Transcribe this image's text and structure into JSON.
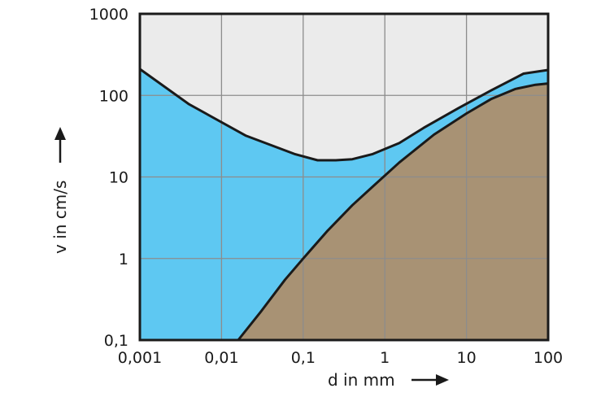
{
  "chart_data": {
    "type": "area",
    "title": "",
    "xlabel": "d in mm",
    "ylabel": "v in cm/s",
    "xscale": "log",
    "yscale": "log",
    "xlim": [
      0.001,
      100
    ],
    "ylim": [
      0.1,
      1000
    ],
    "grid": true,
    "x_ticks": [
      "0,001",
      "0,01",
      "0,1",
      "1",
      "10",
      "100"
    ],
    "y_ticks": [
      "0,1",
      "1",
      "10",
      "100",
      "1000"
    ],
    "colors": {
      "upper_region": "#ebebeb",
      "middle_region": "#5ec8f2",
      "lower_region": "#a89274",
      "curve": "#1a1a1a",
      "grid": "#8c8c8c"
    },
    "series": [
      {
        "x": [
          0.001,
          0.004,
          0.02,
          0.08,
          0.15,
          0.25,
          0.4,
          0.7,
          1.5,
          3,
          8,
          20,
          50,
          100
        ],
        "y": [
          210,
          78,
          32,
          19,
          16,
          16,
          16.5,
          19,
          26,
          40,
          70,
          115,
          185,
          205
        ]
      },
      {
        "x": [
          0.016,
          0.03,
          0.06,
          0.1,
          0.2,
          0.4,
          0.7,
          1.5,
          4,
          10,
          20,
          40,
          70,
          100
        ],
        "y": [
          0.1,
          0.22,
          0.55,
          1.0,
          2.2,
          4.5,
          7.5,
          15,
          33,
          60,
          90,
          120,
          135,
          140
        ]
      }
    ]
  }
}
